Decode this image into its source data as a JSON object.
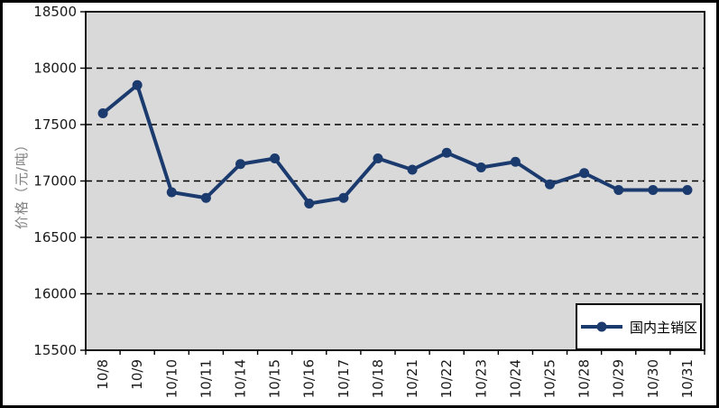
{
  "chart_data": {
    "type": "line",
    "title": "",
    "xlabel": "",
    "ylabel": "价格（元/吨）",
    "ylim": [
      15500,
      18500
    ],
    "yticks": [
      15500,
      16000,
      16500,
      17000,
      17500,
      18000,
      18500
    ],
    "grid": "horizontal-dashed",
    "legend_position": "bottom-right-inside",
    "categories": [
      "10/8",
      "10/9",
      "10/10",
      "10/11",
      "10/14",
      "10/15",
      "10/16",
      "10/17",
      "10/18",
      "10/21",
      "10/22",
      "10/23",
      "10/24",
      "10/25",
      "10/28",
      "10/29",
      "10/30",
      "10/31"
    ],
    "series": [
      {
        "name": "国内主销区",
        "marker": "circle",
        "values": [
          17600,
          17850,
          16900,
          16850,
          17150,
          17200,
          16800,
          16850,
          17200,
          17100,
          17250,
          17120,
          17170,
          16970,
          17070,
          16920,
          16920,
          16920
        ]
      }
    ],
    "colors": {
      "line": "#1b3a6e",
      "plot_background": "#d9d9d9",
      "gridline": "#000000",
      "axis": "#000000",
      "tick_label": "#1a1a1a",
      "y_axis_title": "#808080",
      "legend_background": "#ffffff",
      "legend_border": "#000000",
      "outer_border": "#000000"
    }
  }
}
